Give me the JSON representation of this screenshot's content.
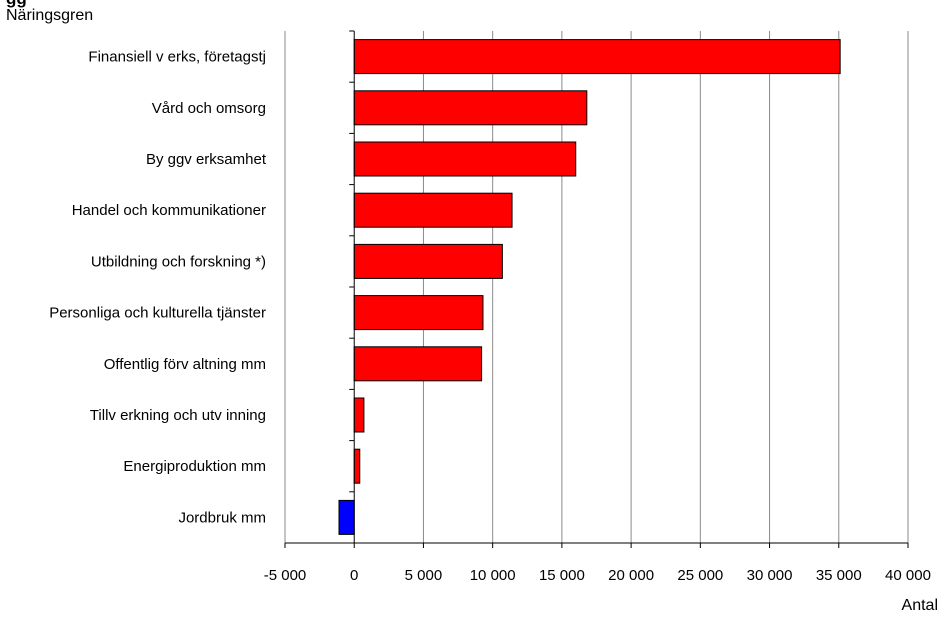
{
  "chart_data": {
    "type": "bar",
    "orientation": "horizontal",
    "title_partial": "gg",
    "ylabel": "Näringsgren",
    "xlabel": "Antal",
    "categories": [
      "Finansiell v erks, företagstj",
      "Vård och omsorg",
      "By ggv erksamhet",
      "Handel och kommunikationer",
      "Utbildning och forskning *)",
      "Personliga och kulturella tjänster",
      "Offentlig förv altning mm",
      "Tillv erkning och utv inning",
      "Energiproduktion mm",
      "Jordbruk mm"
    ],
    "values": [
      35100,
      16800,
      16000,
      11400,
      10700,
      9300,
      9200,
      700,
      400,
      -1100
    ],
    "bar_colors": [
      "#ff0000",
      "#ff0000",
      "#ff0000",
      "#ff0000",
      "#ff0000",
      "#ff0000",
      "#ff0000",
      "#ff0000",
      "#ff0000",
      "#0000ff"
    ],
    "xlim": [
      -5000,
      40000
    ],
    "xticks": [
      -5000,
      0,
      5000,
      10000,
      15000,
      20000,
      25000,
      30000,
      35000,
      40000
    ],
    "xtick_labels": [
      "-5 000",
      "0",
      "5 000",
      "10 000",
      "15 000",
      "20 000",
      "25 000",
      "30 000",
      "35 000",
      "40 000"
    ],
    "grid": "vertical",
    "legend": "none"
  }
}
